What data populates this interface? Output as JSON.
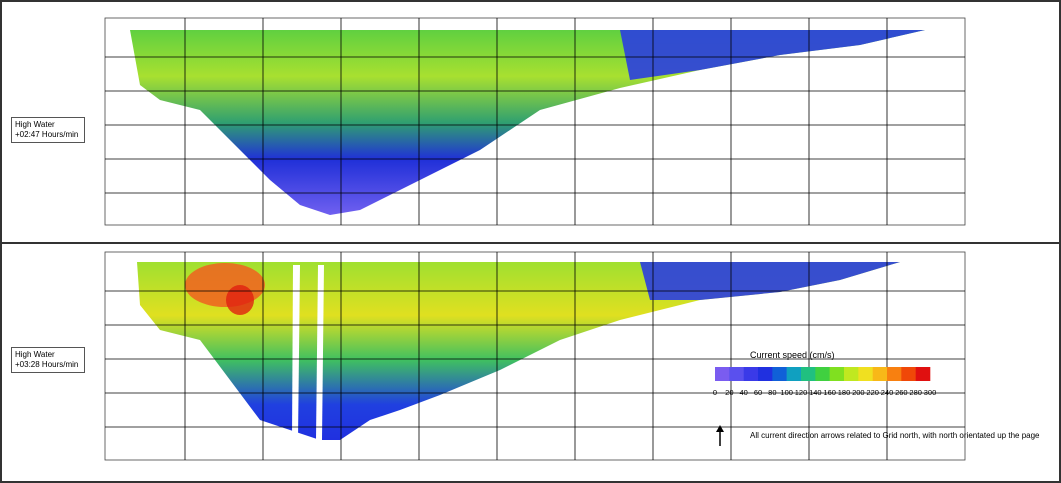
{
  "panels": [
    {
      "label_lines": [
        "High Water",
        "+02:47 Hours/min"
      ]
    },
    {
      "label_lines": [
        "High Water",
        "+03:28 Hours/min"
      ]
    }
  ],
  "legend": {
    "title": "Current speed (cm/s)",
    "ticks": [
      0,
      20,
      40,
      60,
      80,
      100,
      120,
      140,
      160,
      180,
      200,
      220,
      240,
      260,
      280,
      300
    ],
    "colors": [
      "#7a5cf0",
      "#5a50ee",
      "#3a3ae8",
      "#2030e0",
      "#1060d8",
      "#10a0c0",
      "#20c080",
      "#40d040",
      "#80e020",
      "#c0e820",
      "#f0e020",
      "#f8b818",
      "#f88010",
      "#f04808",
      "#e01010"
    ]
  },
  "note": "All current direction arrows related to Grid north, with north orientated up the page"
}
